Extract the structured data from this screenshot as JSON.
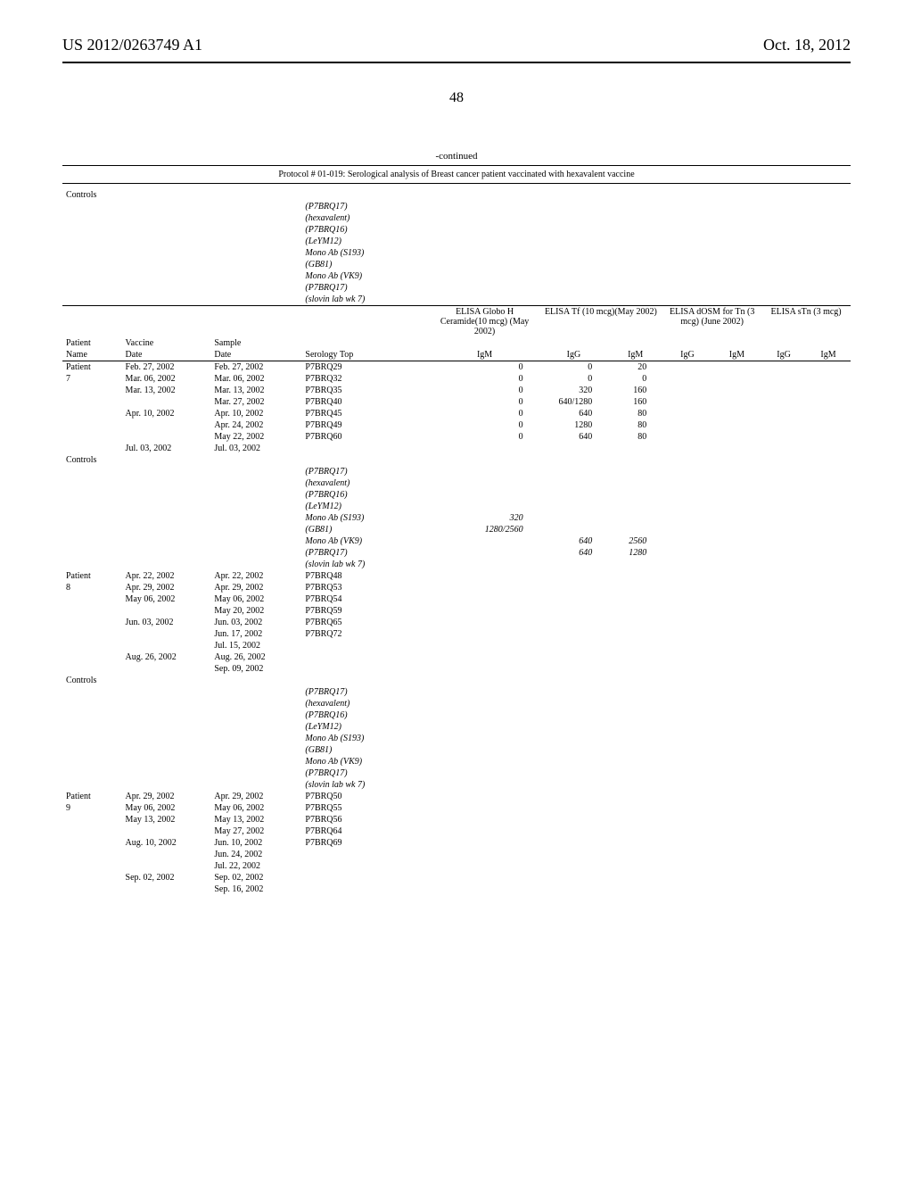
{
  "header": {
    "left": "US 2012/0263749 A1",
    "right": "Oct. 18, 2012"
  },
  "page_number": "48",
  "continued": "-continued",
  "protocol_title": "Protocol # 01-019: Serological analysis of Breast cancer patient vaccinated with hexavalent vaccine",
  "header_row1": {
    "patient": "Patient",
    "vaccine": "Vaccine",
    "sample": "Sample",
    "globo": "ELISA Globo H Ceramide(10 mcg) (May 2002)",
    "tf": "ELISA Tf (10 mcg)(May 2002)",
    "dosm": "ELISA dOSM for Tn (3 mcg) (June 2002)",
    "stn": "ELISA sTn (3 mcg)"
  },
  "header_row2": {
    "name": "Name",
    "date": "Date",
    "date2": "Date",
    "serology": "Serology Top",
    "igm": "IgM",
    "igg": "IgG"
  },
  "controls_label": "Controls",
  "control_items": [
    "(P7BRQ17)",
    "(hexavalent)",
    "(P7BRQ16)",
    "(LeYM12)",
    "Mono Ab (S193)",
    "(GB81)",
    "Mono Ab (VK9)",
    "(P7BRQ17)",
    "(slovin lab wk 7)"
  ],
  "p7": {
    "name1": "Patient",
    "name2": "7",
    "rows": [
      {
        "v": "Feb. 27, 2002",
        "s": "Feb. 27, 2002",
        "st": "P7BRQ29",
        "igm": "0",
        "tfg": "0",
        "tfm": "20"
      },
      {
        "v": "Mar. 06, 2002",
        "s": "Mar. 06, 2002",
        "st": "P7BRQ32",
        "igm": "0",
        "tfg": "0",
        "tfm": "0"
      },
      {
        "v": "Mar. 13, 2002",
        "s": "Mar. 13, 2002",
        "st": "P7BRQ35",
        "igm": "0",
        "tfg": "320",
        "tfm": "160"
      },
      {
        "v": "",
        "s": "Mar. 27, 2002",
        "st": "P7BRQ40",
        "igm": "0",
        "tfg": "640/1280",
        "tfm": "160"
      },
      {
        "v": "Apr. 10, 2002",
        "s": "Apr. 10, 2002",
        "st": "P7BRQ45",
        "igm": "0",
        "tfg": "640",
        "tfm": "80"
      },
      {
        "v": "",
        "s": "Apr. 24, 2002",
        "st": "P7BRQ49",
        "igm": "0",
        "tfg": "1280",
        "tfm": "80"
      },
      {
        "v": "",
        "s": "May 22, 2002",
        "st": "P7BRQ60",
        "igm": "0",
        "tfg": "640",
        "tfm": "80"
      },
      {
        "v": "Jul. 03, 2002",
        "s": "Jul. 03, 2002",
        "st": "",
        "igm": "",
        "tfg": "",
        "tfm": ""
      }
    ]
  },
  "ctrl2_extra": {
    "s193": "320",
    "gb81": "1280/2560",
    "vk9_g": "640",
    "vk9_m": "2560",
    "p17_g": "640",
    "p17_m": "1280"
  },
  "p8": {
    "name1": "Patient",
    "name2": "8",
    "rows": [
      {
        "v": "Apr. 22, 2002",
        "s": "Apr. 22, 2002",
        "st": "P7BRQ48"
      },
      {
        "v": "Apr. 29, 2002",
        "s": "Apr. 29, 2002",
        "st": "P7BRQ53"
      },
      {
        "v": "May 06, 2002",
        "s": "May 06, 2002",
        "st": "P7BRQ54"
      },
      {
        "v": "",
        "s": "May 20, 2002",
        "st": "P7BRQ59"
      },
      {
        "v": "Jun. 03, 2002",
        "s": "Jun. 03, 2002",
        "st": "P7BRQ65"
      },
      {
        "v": "",
        "s": "Jun. 17, 2002",
        "st": "P7BRQ72"
      },
      {
        "v": "",
        "s": "Jul. 15, 2002",
        "st": ""
      },
      {
        "v": "Aug. 26, 2002",
        "s": "Aug. 26, 2002",
        "st": ""
      },
      {
        "v": "",
        "s": "Sep. 09, 2002",
        "st": ""
      }
    ]
  },
  "p9": {
    "name1": "Patient",
    "name2": "9",
    "rows": [
      {
        "v": "Apr. 29, 2002",
        "s": "Apr. 29, 2002",
        "st": "P7BRQ50"
      },
      {
        "v": "May 06, 2002",
        "s": "May 06, 2002",
        "st": "P7BRQ55"
      },
      {
        "v": "May 13, 2002",
        "s": "May 13, 2002",
        "st": "P7BRQ56"
      },
      {
        "v": "",
        "s": "May 27, 2002",
        "st": "P7BRQ64"
      },
      {
        "v": "Aug. 10, 2002",
        "s": "Jun. 10, 2002",
        "st": "P7BRQ69"
      },
      {
        "v": "",
        "s": "Jun. 24, 2002",
        "st": ""
      },
      {
        "v": "",
        "s": "Jul. 22, 2002",
        "st": ""
      },
      {
        "v": "Sep. 02, 2002",
        "s": "Sep. 02, 2002",
        "st": ""
      },
      {
        "v": "",
        "s": "Sep. 16, 2002",
        "st": ""
      }
    ]
  }
}
